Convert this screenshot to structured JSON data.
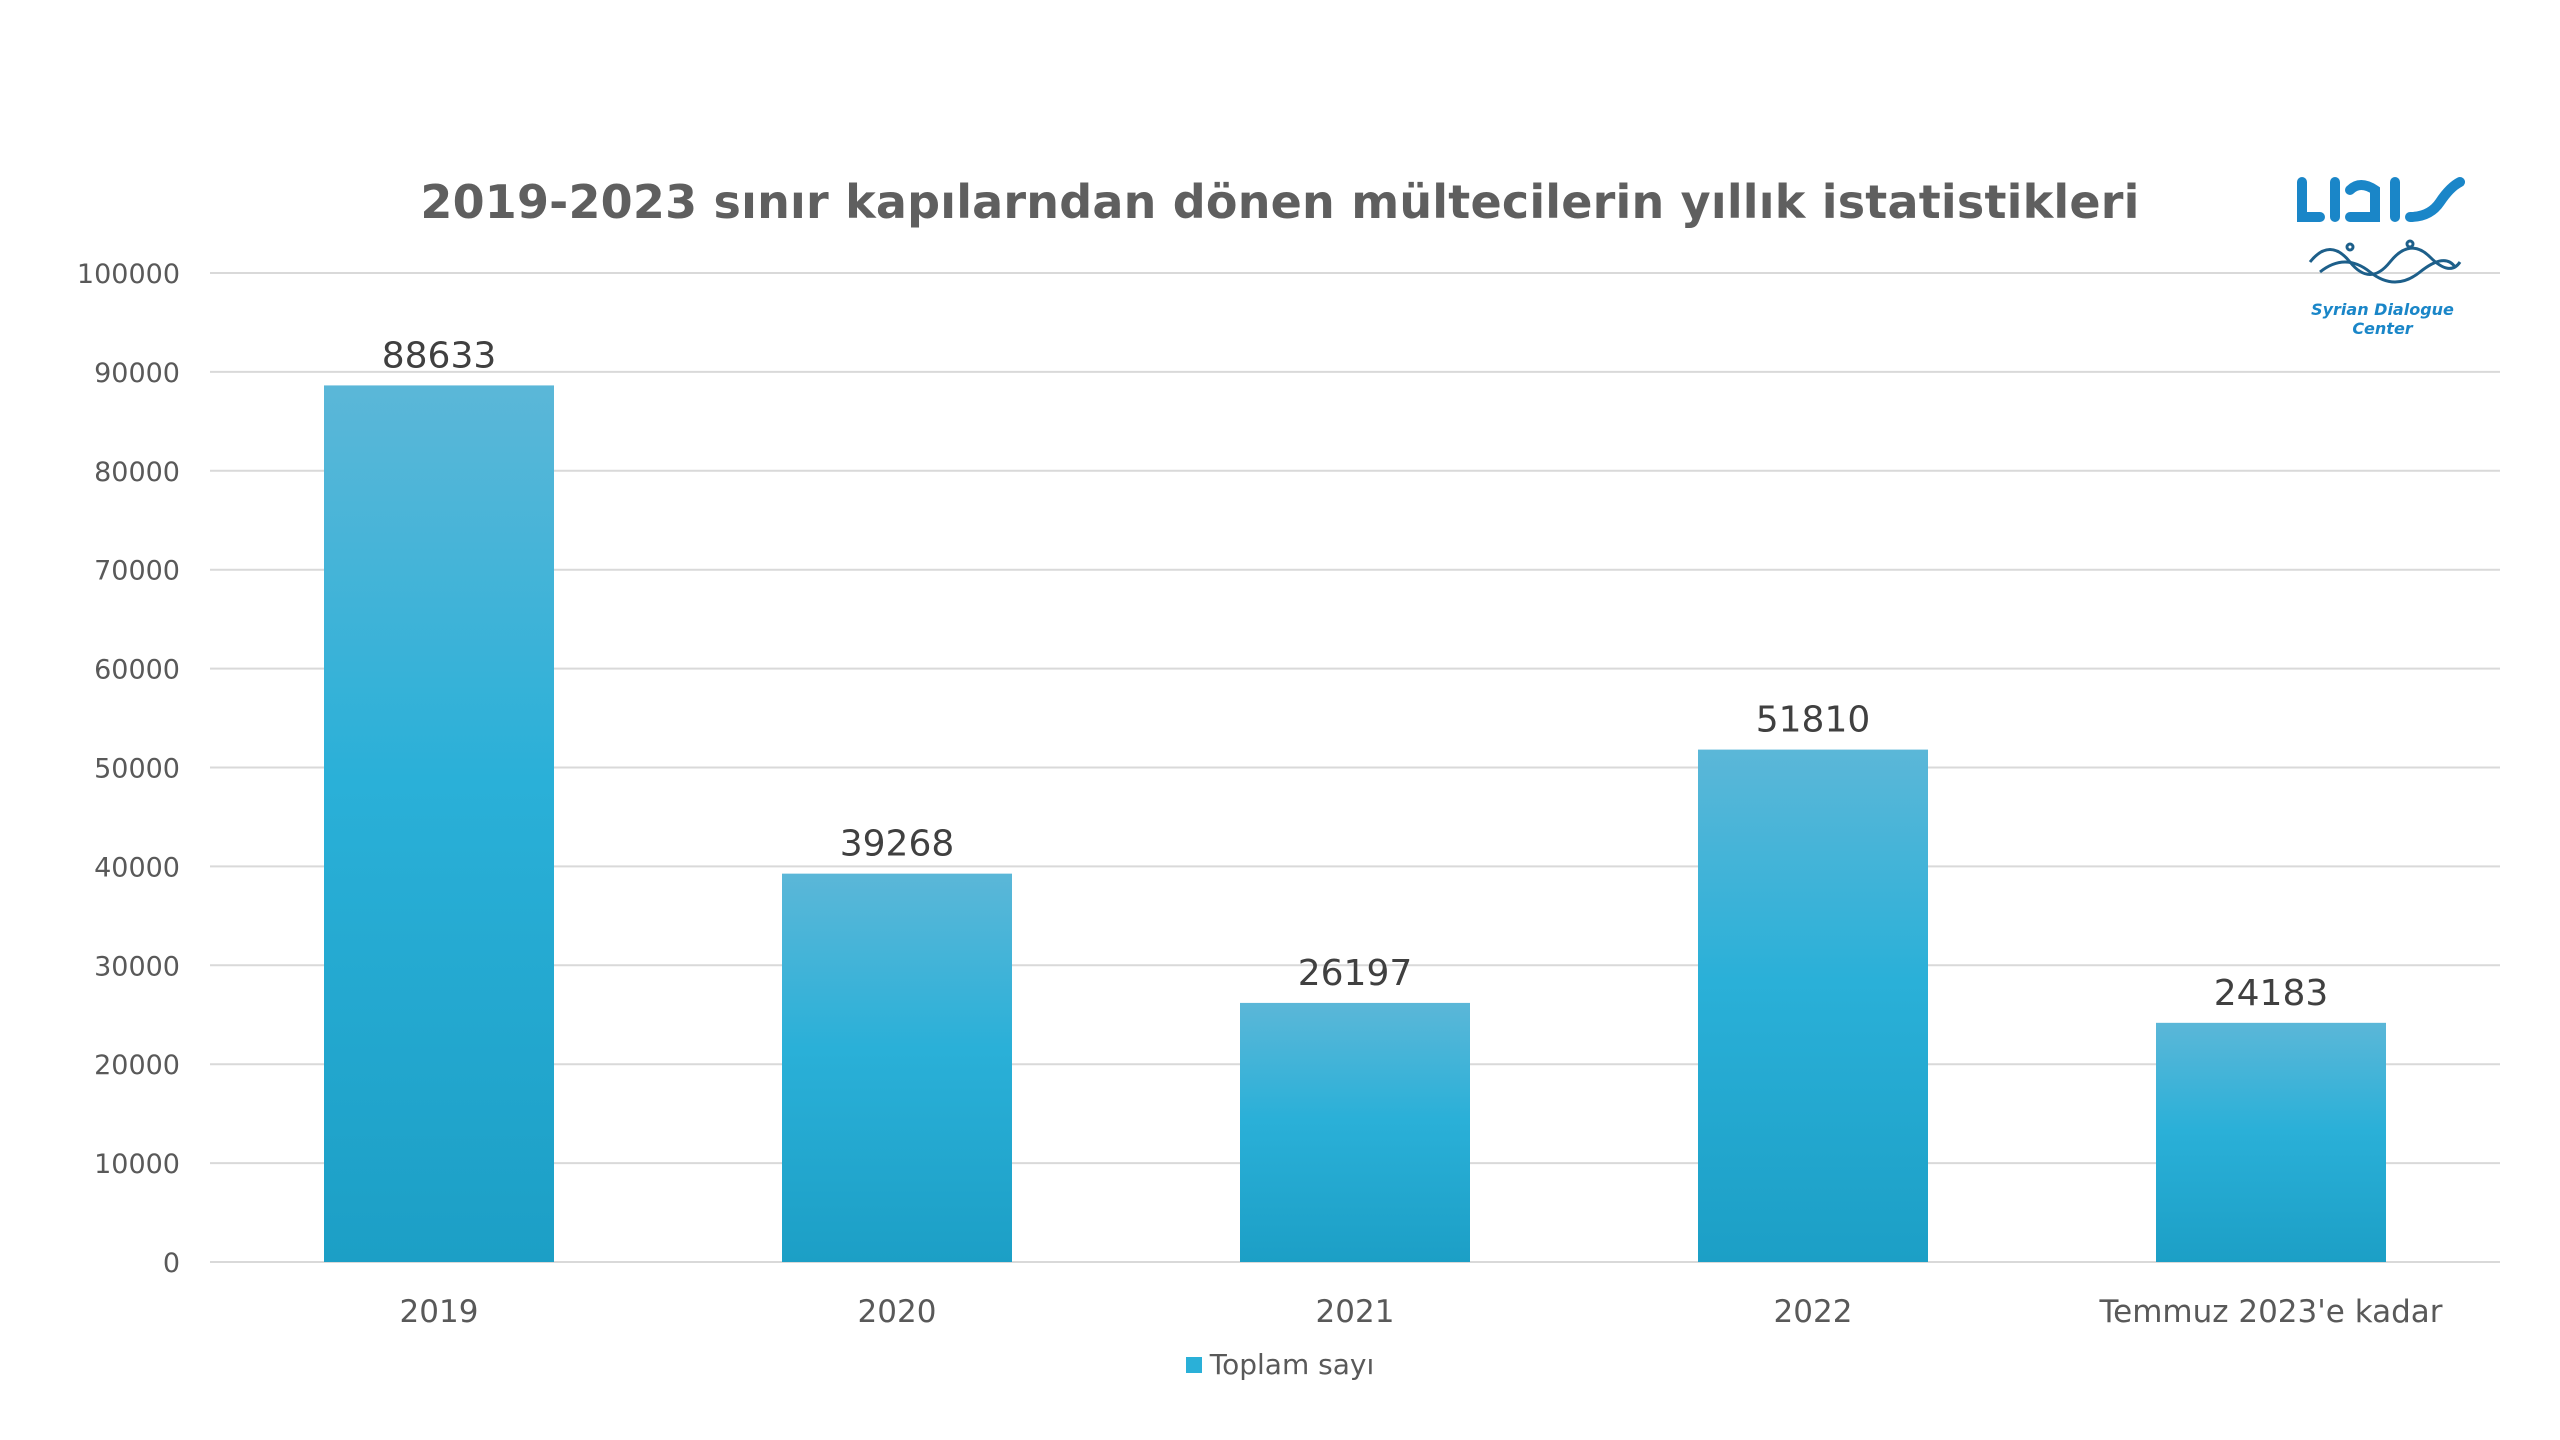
{
  "chart_data": {
    "type": "bar",
    "title": "2019-2023 sınır kapılarndan dönen mültecilerin yıllık istatistikleri",
    "categories": [
      "2019",
      "2020",
      "2021",
      "2022",
      "Temmuz 2023'e kadar"
    ],
    "series": [
      {
        "name": "Toplam sayı",
        "values": [
          88633,
          39268,
          26197,
          51810,
          24183
        ]
      }
    ],
    "data_labels": [
      "88633",
      "39268",
      "26197",
      "51810",
      "24183"
    ],
    "y_ticks": [
      "0",
      "10000",
      "20000",
      "30000",
      "40000",
      "50000",
      "60000",
      "70000",
      "80000",
      "90000",
      "100000"
    ],
    "ylim": [
      0,
      100000
    ],
    "grid": true,
    "legend": "bottom",
    "colors": {
      "bar_top": "#5bb7d8",
      "bar_mid": "#2ab0d8",
      "bar_bottom": "#1c9fc6",
      "grid": "#d9d9d9",
      "text": "#595959",
      "title": "#5f5f5f"
    }
  },
  "logo": {
    "caption": "Syrian Dialogue Center"
  }
}
